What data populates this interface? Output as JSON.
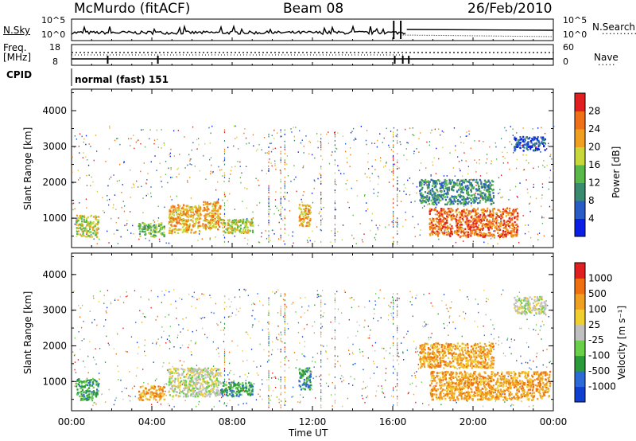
{
  "header": {
    "station": "McMurdo (fitACF)",
    "beam": "Beam 08",
    "date": "26/Feb/2010"
  },
  "top_panels": {
    "nsky_label": "N.Sky",
    "nsearch_label": "N.Search",
    "nsky_ticks": [
      "10^5",
      "10^0"
    ],
    "nsearch_ticks": [
      "10^5",
      "10^0"
    ],
    "freq_label": "Freq.",
    "freq_unit": "[MHz]",
    "freq_ticks": [
      "18",
      "8"
    ],
    "nave_label": "Nave",
    "nave_ticks": [
      "60",
      "0"
    ],
    "cpid_label": "CPID",
    "cpid_text": "normal (fast) 151"
  },
  "chart_data": [
    {
      "type": "heatmap",
      "name": "power",
      "ylabel": "Slant Range [km]",
      "xlabel": "",
      "x_ticks": [
        "00:00",
        "04:00",
        "08:00",
        "12:00",
        "16:00",
        "20:00",
        "00:00"
      ],
      "xlim_hours": [
        0,
        24
      ],
      "y_ticks": [
        "1000",
        "2000",
        "3000",
        "4000"
      ],
      "ylim": [
        180,
        4600
      ],
      "colorbar_label": "Power [dB]",
      "colorbar_ticks": [
        "4",
        "8",
        "12",
        "16",
        "20",
        "24",
        "28"
      ],
      "colorbar_colors": [
        "#0a1ee6",
        "#2a5cc8",
        "#3a8a70",
        "#5ab84a",
        "#c8d83a",
        "#f0a020",
        "#f07018",
        "#e02020"
      ],
      "regions": [
        {
          "x": [
            0.2,
            1.3
          ],
          "y": [
            500,
            1100
          ],
          "level": 16
        },
        {
          "x": [
            3.3,
            4.6
          ],
          "y": [
            500,
            900
          ],
          "level": 14
        },
        {
          "x": [
            4.8,
            6.4
          ],
          "y": [
            600,
            1400
          ],
          "level": 20
        },
        {
          "x": [
            6.5,
            7.4
          ],
          "y": [
            700,
            1500
          ],
          "level": 22
        },
        {
          "x": [
            7.4,
            9.0
          ],
          "y": [
            600,
            1000
          ],
          "level": 18
        },
        {
          "x": [
            11.3,
            11.9
          ],
          "y": [
            800,
            1400
          ],
          "level": 22
        },
        {
          "x": [
            17.8,
            22.2
          ],
          "y": [
            500,
            1300
          ],
          "level": 24
        },
        {
          "x": [
            17.3,
            21.0
          ],
          "y": [
            1400,
            2100
          ],
          "level": 8
        },
        {
          "x": [
            22.0,
            23.6
          ],
          "y": [
            2900,
            3300
          ],
          "level": 6
        }
      ]
    },
    {
      "type": "heatmap",
      "name": "velocity",
      "ylabel": "Slant Range [km]",
      "xlabel": "Time UT",
      "x_ticks": [
        "00:00",
        "04:00",
        "08:00",
        "12:00",
        "16:00",
        "20:00",
        "00:00"
      ],
      "xlim_hours": [
        0,
        24
      ],
      "y_ticks": [
        "1000",
        "2000",
        "3000",
        "4000"
      ],
      "ylim": [
        180,
        4600
      ],
      "colorbar_label": "Velocity [m s⁻¹]",
      "colorbar_ticks": [
        "1000",
        "500",
        "100",
        "25",
        "-25",
        "-100",
        "-500",
        "-1000"
      ],
      "colorbar_colors": [
        "#1040d0",
        "#2c6ad8",
        "#2a9a3a",
        "#6ad04a",
        "#c0c0c0",
        "#f0d030",
        "#f0a020",
        "#f07010",
        "#e02020"
      ],
      "regions": [
        {
          "x": [
            0.2,
            1.3
          ],
          "y": [
            500,
            1100
          ],
          "level": 100
        },
        {
          "x": [
            3.3,
            4.6
          ],
          "y": [
            500,
            900
          ],
          "level": -100
        },
        {
          "x": [
            4.8,
            7.4
          ],
          "y": [
            600,
            1400
          ],
          "level": 0
        },
        {
          "x": [
            7.4,
            9.0
          ],
          "y": [
            600,
            1000
          ],
          "level": 100
        },
        {
          "x": [
            11.3,
            11.9
          ],
          "y": [
            800,
            1400
          ],
          "level": 100
        },
        {
          "x": [
            17.8,
            23.8
          ],
          "y": [
            500,
            1300
          ],
          "level": -300
        },
        {
          "x": [
            17.3,
            21.0
          ],
          "y": [
            1400,
            2100
          ],
          "level": -100
        },
        {
          "x": [
            22.0,
            23.6
          ],
          "y": [
            2900,
            3400
          ],
          "level": 0
        }
      ]
    }
  ]
}
